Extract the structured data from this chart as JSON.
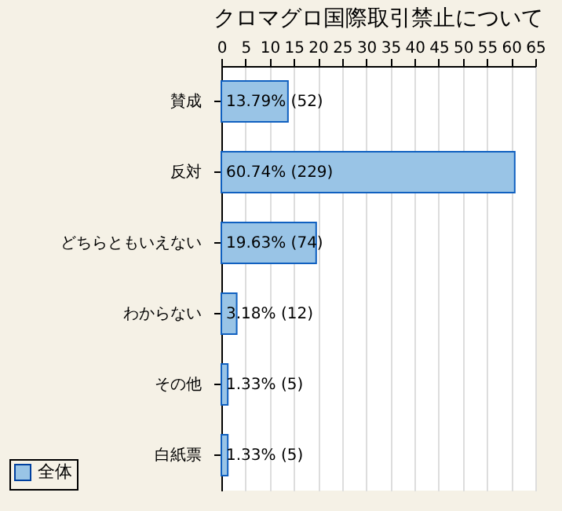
{
  "chart_data": {
    "type": "bar",
    "orientation": "horizontal",
    "title": "クロマグロ国際取引禁止について",
    "categories": [
      "賛成",
      "反対",
      "どちらともいえない",
      "わからない",
      "その他",
      "白紙票"
    ],
    "series": [
      {
        "name": "全体",
        "color": "#99c4e6",
        "values": [
          13.79,
          60.74,
          19.63,
          3.18,
          1.33,
          1.33
        ],
        "value_labels": [
          "13.79% (52)",
          "60.74% (229)",
          "19.63% (74)",
          "3.18% (12)",
          "1.33% (5)",
          "1.33% (5)"
        ]
      }
    ],
    "xlim": [
      0,
      65
    ],
    "xticks": [
      0,
      5,
      10,
      15,
      20,
      25,
      30,
      35,
      40,
      45,
      50,
      55,
      60,
      65
    ],
    "grid": "x",
    "legend": "bottom left"
  }
}
